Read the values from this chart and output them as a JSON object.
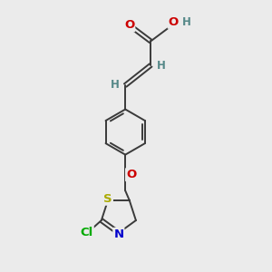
{
  "bg_color": "#ebebeb",
  "bond_color": "#3a3a3a",
  "atom_colors": {
    "O": "#cc0000",
    "N": "#0000cc",
    "S": "#aaaa00",
    "Cl": "#00aa00",
    "H": "#558888",
    "C": "#3a3a3a"
  },
  "figsize": [
    3.0,
    3.0
  ],
  "dpi": 100
}
